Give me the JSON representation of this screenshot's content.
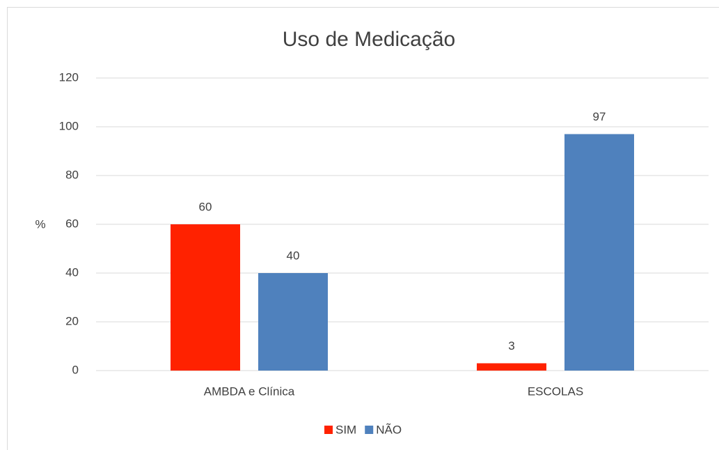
{
  "chart_data": {
    "type": "bar",
    "title": "Uso de Medicação",
    "y_label": "%",
    "categories": [
      "AMBDA e Clínica",
      "ESCOLAS"
    ],
    "series": [
      {
        "name": "SIM",
        "color": "#ff2200",
        "values": [
          60,
          3
        ]
      },
      {
        "name": "NÃO",
        "color": "#4f81bd",
        "values": [
          40,
          97
        ]
      }
    ],
    "ylim": [
      0,
      120
    ],
    "yticks": [
      0,
      20,
      40,
      60,
      80,
      100,
      120
    ],
    "grid": true,
    "legend": "bottom",
    "data_labels": true
  }
}
